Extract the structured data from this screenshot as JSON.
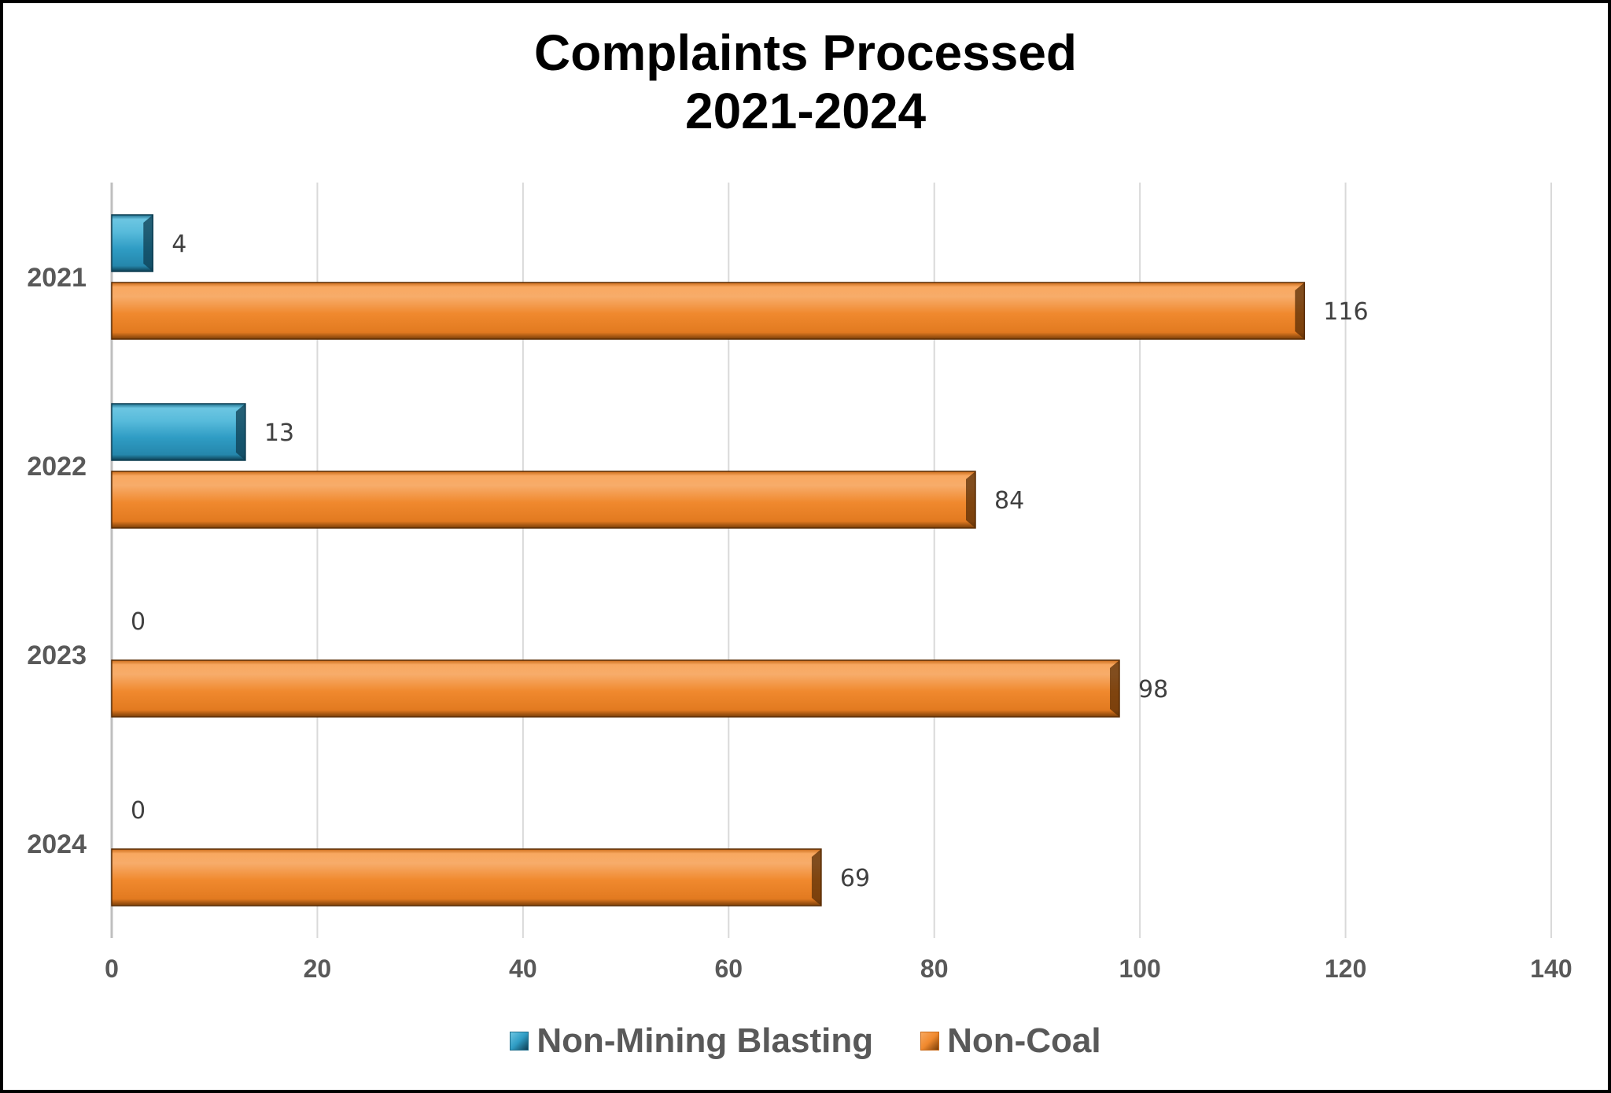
{
  "chart_data": {
    "type": "bar",
    "orientation": "horizontal",
    "title": "Complaints Processed\n2021-2024",
    "title_lines": [
      "Complaints Processed",
      "2021-2024"
    ],
    "categories": [
      "2021",
      "2022",
      "2023",
      "2024"
    ],
    "series": [
      {
        "name": "Non-Mining Blasting",
        "color": "#2F9CC4",
        "values": [
          4,
          13,
          0,
          0
        ]
      },
      {
        "name": "Non-Coal",
        "color": "#F0892E",
        "values": [
          116,
          84,
          98,
          69
        ]
      }
    ],
    "xlim": [
      0,
      140
    ],
    "xticks": [
      "0",
      "20",
      "40",
      "60",
      "80",
      "100",
      "120",
      "140"
    ],
    "grid": true,
    "legend_position": "bottom",
    "data_labels": true
  }
}
